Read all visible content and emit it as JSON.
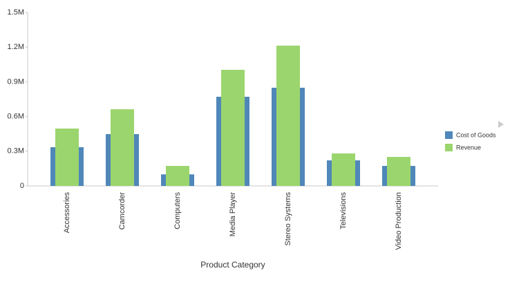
{
  "chart_data": {
    "type": "bar",
    "x_label": "Product Category",
    "categories": [
      "Accessories",
      "Camcorder",
      "Computers",
      "Media Player",
      "Stereo Systems",
      "Televisions",
      "Video Production"
    ],
    "series": [
      {
        "name": "Cost of Goods",
        "color": "#4f87b9",
        "values": [
          335000,
          448000,
          100000,
          771000,
          849000,
          221000,
          173000
        ]
      },
      {
        "name": "Revenue",
        "color": "#9bd56e",
        "values": [
          496000,
          663000,
          173000,
          1004000,
          1213000,
          281000,
          251000
        ]
      }
    ],
    "ylim": [
      0,
      1500000
    ],
    "yticks": [
      0,
      {
        "value": 300000,
        "label": "0.3M"
      },
      {
        "value": 600000,
        "label": "0.6M"
      },
      {
        "value": 900000,
        "label": "0.9M"
      },
      {
        "value": 1200000,
        "label": "1.2M"
      },
      {
        "value": 1500000,
        "label": "1.5M"
      }
    ],
    "grid": false,
    "legend": "right"
  }
}
